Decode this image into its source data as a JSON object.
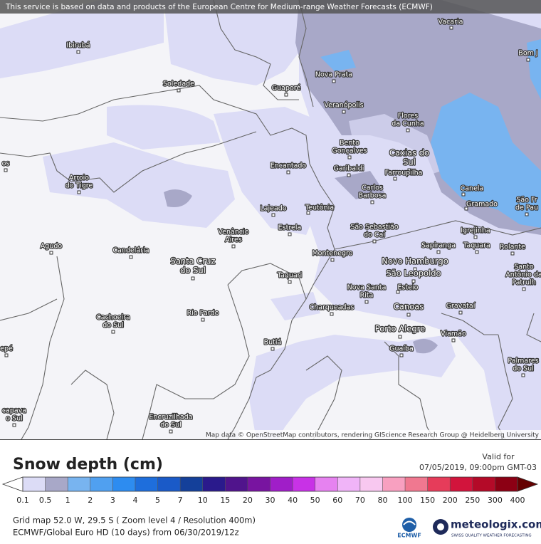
{
  "banner": "This service is based on data and products of the European Centre for Medium-range Weather Forecasts (ECMWF)",
  "attribution": "Map data © OpenStreetMap contributors, rendering GIScience Research Group @ Heidelberg University",
  "cities": [
    {
      "lines": [
        "Vacaria"
      ]
    },
    {
      "lines": [
        "Ibirubá"
      ]
    },
    {
      "lines": [
        "Bom J"
      ]
    },
    {
      "lines": [
        "Nova Prata"
      ]
    },
    {
      "lines": [
        "Soledade"
      ]
    },
    {
      "lines": [
        "Guaporé"
      ]
    },
    {
      "lines": [
        "Veranópolis"
      ]
    },
    {
      "lines": [
        "Flores",
        "da Cunha"
      ]
    },
    {
      "lines": [
        "Bento",
        "Gonçalves"
      ]
    },
    {
      "lines": [
        "Caxias do",
        "Sul"
      ]
    },
    {
      "lines": [
        "Garibaldi"
      ]
    },
    {
      "lines": [
        "Farroupilha"
      ]
    },
    {
      "lines": [
        "Encantado"
      ]
    },
    {
      "lines": [
        "Arroio",
        "do Tigre"
      ]
    },
    {
      "lines": [
        "Carlos",
        "Barbosa"
      ]
    },
    {
      "lines": [
        "Canela"
      ]
    },
    {
      "lines": [
        "Gramado"
      ]
    },
    {
      "lines": [
        "São Fr",
        "de Pau"
      ]
    },
    {
      "lines": [
        "Lajeado"
      ]
    },
    {
      "lines": [
        "Teutônia"
      ]
    },
    {
      "lines": [
        "Estrela"
      ]
    },
    {
      "lines": [
        "Venâncio",
        "Aires"
      ]
    },
    {
      "lines": [
        "São Sebastião",
        "do Caí"
      ]
    },
    {
      "lines": [
        "Igrejinha"
      ]
    },
    {
      "lines": [
        "Agudo"
      ]
    },
    {
      "lines": [
        "Candelária"
      ]
    },
    {
      "lines": [
        "Sapiranga"
      ]
    },
    {
      "lines": [
        "Taquara"
      ]
    },
    {
      "lines": [
        "Rolante"
      ]
    },
    {
      "lines": [
        "Montenegro"
      ]
    },
    {
      "lines": [
        "Santa Cruz",
        "do Sul"
      ]
    },
    {
      "lines": [
        "Novo Hamburgo"
      ]
    },
    {
      "lines": [
        "Santo",
        "Antônio da",
        "Patrulh"
      ]
    },
    {
      "lines": [
        "São Leopoldo"
      ]
    },
    {
      "lines": [
        "Taquari"
      ]
    },
    {
      "lines": [
        "Nova Santa",
        "Rita"
      ]
    },
    {
      "lines": [
        "Esteio"
      ]
    },
    {
      "lines": [
        "Cachoeira",
        "do Sul"
      ]
    },
    {
      "lines": [
        "Rio Pardo"
      ]
    },
    {
      "lines": [
        "Charqueadas"
      ]
    },
    {
      "lines": [
        "Canoas"
      ]
    },
    {
      "lines": [
        "Gravataí"
      ]
    },
    {
      "lines": [
        "Porto Alegre"
      ]
    },
    {
      "lines": [
        "Viamão"
      ]
    },
    {
      "lines": [
        "Butiá"
      ]
    },
    {
      "lines": [
        "Guaíba"
      ]
    },
    {
      "lines": [
        "Palmares",
        "do Sul"
      ]
    },
    {
      "lines": [
        "Encruzilhada",
        "do Sul"
      ]
    },
    {
      "lines": [
        "capava",
        "o Sul"
      ]
    },
    {
      "lines": [
        "epé"
      ]
    },
    {
      "lines": [
        "os"
      ]
    }
  ],
  "legend": {
    "title": "Snow depth (cm)",
    "ticks": [
      0.1,
      0.5,
      1,
      2,
      3,
      4,
      5,
      7,
      10,
      15,
      20,
      30,
      40,
      50,
      60,
      70,
      80,
      100,
      150,
      200,
      250,
      300,
      400
    ],
    "colors": [
      "#dcdcf6",
      "#a8a8c8",
      "#78b4f0",
      "#50a0f0",
      "#2d8cf0",
      "#1e6edc",
      "#1a5ac8",
      "#14409a",
      "#2a1a8c",
      "#50148c",
      "#7814a0",
      "#a01ec8",
      "#c832e6",
      "#e682f0",
      "#f0b4f8",
      "#f8c8f0",
      "#f8a0c0",
      "#f07890",
      "#e63c5a",
      "#d2143c",
      "#b40a28",
      "#8c0014"
    ],
    "low_color": "#ffffff",
    "high_color": "#640000"
  },
  "valid_label": "Valid for",
  "valid_time": "07/05/2019, 09:00pm GMT-03",
  "footer": [
    "Grid map 52.0 W, 29.5 S ( Zoom level 4 / Resolution 400m)",
    "ECMWF/Global Euro HD (10 days) from 06/30/2019/12z"
  ],
  "logos": {
    "ecmwf": "ECMWF",
    "meteologix": "meteologix.com",
    "tagline": "SWISS QUALITY WEATHER FORECASTING"
  }
}
